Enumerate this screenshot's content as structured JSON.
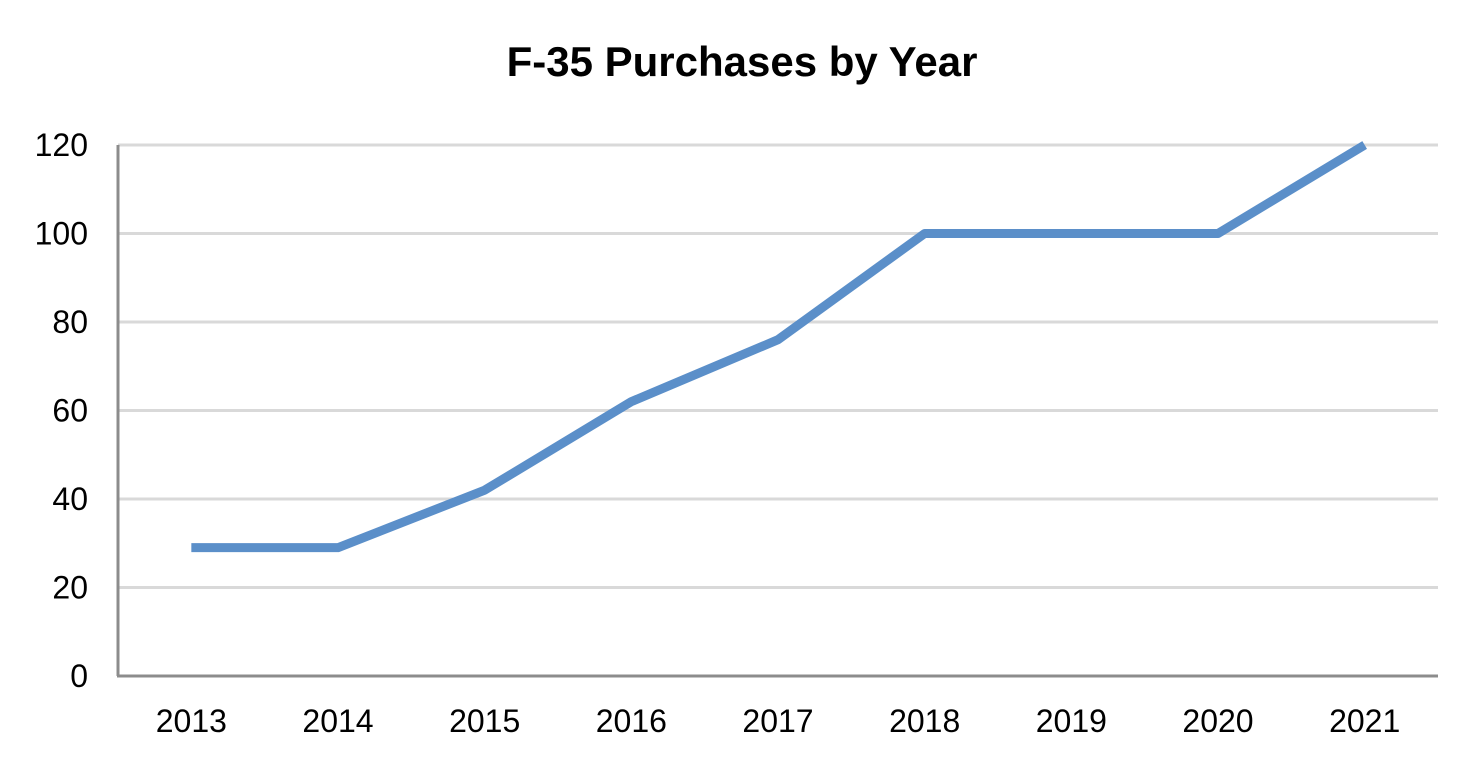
{
  "chart_data": {
    "type": "line",
    "title": "F-35 Purchases by Year",
    "xlabel": "",
    "ylabel": "",
    "categories": [
      "2013",
      "2014",
      "2015",
      "2016",
      "2017",
      "2018",
      "2019",
      "2020",
      "2021"
    ],
    "series": [
      {
        "values": [
          29,
          29,
          42,
          62,
          76,
          100,
          100,
          100,
          120
        ],
        "color": "#5b8fc9"
      }
    ],
    "ylim": [
      0,
      120
    ],
    "yticks": [
      "0",
      "20",
      "40",
      "60",
      "80",
      "100",
      "120"
    ],
    "grid": true,
    "legend": "none",
    "gridline_color": "#d9d9d9",
    "axis_color": "#8c8c8c"
  }
}
